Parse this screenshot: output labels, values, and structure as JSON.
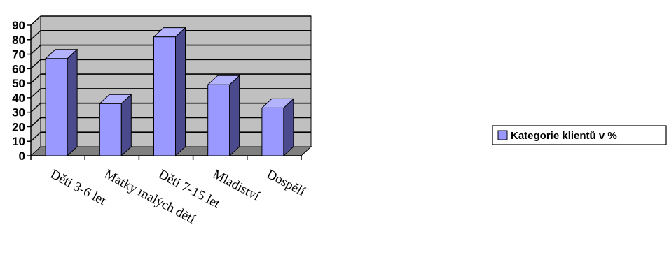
{
  "chart_data": {
    "type": "bar",
    "style": "3d",
    "categories": [
      "Děti 3-6 let",
      "Matky malých dětí",
      "Děti 7-15 let",
      "Mladiství",
      "Dospělí"
    ],
    "series": [
      {
        "name": "Kategorie klientů v %",
        "values": [
          67,
          36,
          82,
          49,
          33
        ]
      }
    ],
    "ylim": [
      0,
      90
    ],
    "yticks": [
      "0",
      "10",
      "20",
      "30",
      "40",
      "50",
      "60",
      "70",
      "80",
      "90"
    ],
    "grid": true,
    "legend_position": "right",
    "colors": {
      "bar_front": "#9999ff",
      "bar_side": "#4a4a8c",
      "bar_top": "#b3b3ff",
      "back_wall": "#c0c0c0",
      "floor": "#808080",
      "gridline": "#000000"
    }
  }
}
